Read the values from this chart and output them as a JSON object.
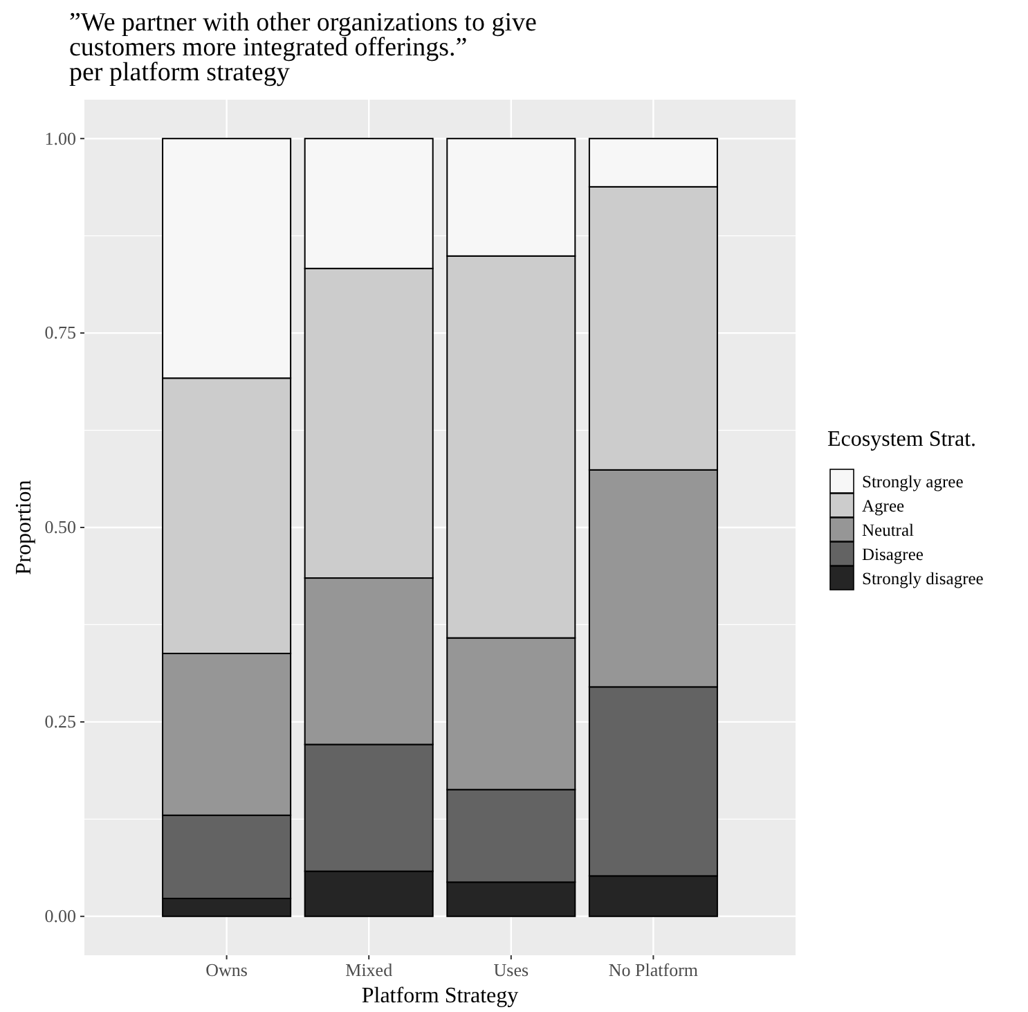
{
  "chart_data": {
    "type": "bar",
    "stacked": true,
    "title": "”We partner with other organizations to give customers more integrated offerings.”",
    "subtitle": "per platform strategy",
    "xlabel": "Platform Strategy",
    "ylabel": "Proportion",
    "legend_title": "Ecosystem Strat.",
    "categories": [
      "Owns",
      "Mixed",
      "Uses",
      "No Platform"
    ],
    "series": [
      {
        "name": "Strongly disagree",
        "color": "#252525",
        "values": [
          0.023,
          0.058,
          0.044,
          0.052
        ]
      },
      {
        "name": "Disagree",
        "color": "#636363",
        "values": [
          0.107,
          0.163,
          0.119,
          0.243
        ]
      },
      {
        "name": "Neutral",
        "color": "#969696",
        "values": [
          0.208,
          0.214,
          0.195,
          0.279
        ]
      },
      {
        "name": "Agree",
        "color": "#cccccc",
        "values": [
          0.354,
          0.398,
          0.491,
          0.364
        ]
      },
      {
        "name": "Strongly agree",
        "color": "#f7f7f7",
        "values": [
          0.308,
          0.167,
          0.151,
          0.062
        ]
      }
    ],
    "ylim": [
      -0.05,
      1.05
    ],
    "yticks": [
      {
        "value": 0,
        "label": "0.00"
      },
      {
        "value": 0.25,
        "label": "0.25"
      },
      {
        "value": 0.5,
        "label": "0.50"
      },
      {
        "value": 0.75,
        "label": "0.75"
      },
      {
        "value": 1,
        "label": "1.00"
      }
    ],
    "grid": true,
    "legend": "right"
  }
}
